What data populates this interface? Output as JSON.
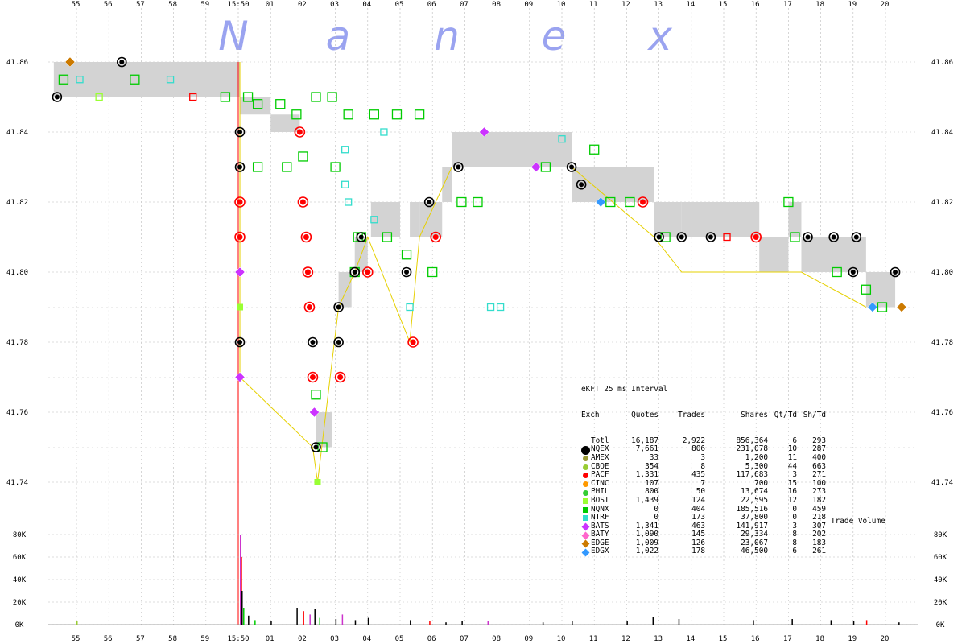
{
  "watermark": [
    "N",
    "a",
    "n",
    "e",
    "x"
  ],
  "chart_data": [
    {
      "type": "scatter",
      "title": "",
      "x_tick_labels": [
        "55",
        "56",
        "57",
        "58",
        "59",
        "15:50",
        "01",
        "02",
        "03",
        "04",
        "05",
        "06",
        "07",
        "08",
        "09",
        "10",
        "11",
        "12",
        "13",
        "14",
        "15",
        "16",
        "17",
        "18",
        "19",
        "20"
      ],
      "y_tick_labels": [
        "41.86",
        "41.84",
        "41.82",
        "41.80",
        "41.78",
        "41.76",
        "41.74"
      ],
      "y_ticks": [
        41.86,
        41.84,
        41.82,
        41.8,
        41.78,
        41.76,
        41.74
      ],
      "ylim": [
        41.735,
        41.865
      ],
      "grid": true,
      "nbbo_band": [
        {
          "t0": -5.7,
          "t1": 0.05,
          "bid": 41.85,
          "ask": 41.86
        },
        {
          "t0": 0.05,
          "t1": 1.0,
          "bid": 41.845,
          "ask": 41.85
        },
        {
          "t0": 1.0,
          "t1": 1.9,
          "bid": 41.84,
          "ask": 41.845
        },
        {
          "t0": 2.4,
          "t1": 2.9,
          "bid": 41.75,
          "ask": 41.76
        },
        {
          "t0": 3.1,
          "t1": 3.5,
          "bid": 41.79,
          "ask": 41.8
        },
        {
          "t0": 3.6,
          "t1": 4.0,
          "bid": 41.8,
          "ask": 41.81
        },
        {
          "t0": 4.1,
          "t1": 5.0,
          "bid": 41.81,
          "ask": 41.82
        },
        {
          "t0": 5.3,
          "t1": 5.6,
          "bid": 41.81,
          "ask": 41.82
        },
        {
          "t0": 5.6,
          "t1": 6.3,
          "bid": 41.81,
          "ask": 41.82
        },
        {
          "t0": 6.3,
          "t1": 6.6,
          "bid": 41.82,
          "ask": 41.83
        },
        {
          "t0": 6.6,
          "t1": 10.3,
          "bid": 41.83,
          "ask": 41.84
        },
        {
          "t0": 10.3,
          "t1": 12.85,
          "bid": 41.82,
          "ask": 41.83
        },
        {
          "t0": 12.85,
          "t1": 13.7,
          "bid": 41.81,
          "ask": 41.82
        },
        {
          "t0": 13.7,
          "t1": 16.1,
          "bid": 41.81,
          "ask": 41.82
        },
        {
          "t0": 16.1,
          "t1": 17.0,
          "bid": 41.8,
          "ask": 41.81
        },
        {
          "t0": 17.0,
          "t1": 17.4,
          "bid": 41.81,
          "ask": 41.82
        },
        {
          "t0": 17.4,
          "t1": 19.4,
          "bid": 41.8,
          "ask": 41.81
        },
        {
          "t0": 19.4,
          "t1": 20.3,
          "bid": 41.79,
          "ask": 41.8
        }
      ],
      "trades": [
        {
          "t": -5.6,
          "p": 41.85,
          "e": "NQEX"
        },
        {
          "t": -5.2,
          "p": 41.86,
          "e": "EDGE"
        },
        {
          "t": -3.6,
          "p": 41.86,
          "e": "NQEX"
        },
        {
          "t": 0.05,
          "p": 41.84,
          "e": "NQEX"
        },
        {
          "t": 0.05,
          "p": 41.83,
          "e": "NQEX"
        },
        {
          "t": 0.05,
          "p": 41.82,
          "e": "PACF"
        },
        {
          "t": 0.05,
          "p": 41.81,
          "e": "PACF"
        },
        {
          "t": 0.05,
          "p": 41.8,
          "e": "BATS"
        },
        {
          "t": 0.05,
          "p": 41.79,
          "e": "BOST"
        },
        {
          "t": 0.05,
          "p": 41.78,
          "e": "NQEX"
        },
        {
          "t": 0.05,
          "p": 41.77,
          "e": "BATS"
        },
        {
          "t": 1.9,
          "p": 41.84,
          "e": "PACF"
        },
        {
          "t": 2.0,
          "p": 41.82,
          "e": "PACF"
        },
        {
          "t": 2.1,
          "p": 41.81,
          "e": "PACF"
        },
        {
          "t": 2.15,
          "p": 41.8,
          "e": "PACF"
        },
        {
          "t": 2.2,
          "p": 41.79,
          "e": "PACF"
        },
        {
          "t": 2.3,
          "p": 41.78,
          "e": "NQEX"
        },
        {
          "t": 2.3,
          "p": 41.77,
          "e": "PACF"
        },
        {
          "t": 2.35,
          "p": 41.76,
          "e": "BATS"
        },
        {
          "t": 2.4,
          "p": 41.75,
          "e": "NQEX"
        },
        {
          "t": 2.45,
          "p": 41.74,
          "e": "BOST"
        },
        {
          "t": 3.1,
          "p": 41.79,
          "e": "NQEX"
        },
        {
          "t": 3.1,
          "p": 41.78,
          "e": "NQEX"
        },
        {
          "t": 3.15,
          "p": 41.77,
          "e": "PACF"
        },
        {
          "t": 3.6,
          "p": 41.8,
          "e": "NQEX"
        },
        {
          "t": 3.8,
          "p": 41.81,
          "e": "NQEX"
        },
        {
          "t": 4.0,
          "p": 41.8,
          "e": "PACF"
        },
        {
          "t": 5.2,
          "p": 41.8,
          "e": "NQEX"
        },
        {
          "t": 5.4,
          "p": 41.78,
          "e": "PACF"
        },
        {
          "t": 5.9,
          "p": 41.82,
          "e": "NQEX"
        },
        {
          "t": 6.1,
          "p": 41.81,
          "e": "PACF"
        },
        {
          "t": 6.8,
          "p": 41.83,
          "e": "NQEX"
        },
        {
          "t": 7.6,
          "p": 41.84,
          "e": "BATS"
        },
        {
          "t": 9.2,
          "p": 41.83,
          "e": "BATS"
        },
        {
          "t": 10.3,
          "p": 41.83,
          "e": "NQEX"
        },
        {
          "t": 10.6,
          "p": 41.825,
          "e": "NQEX"
        },
        {
          "t": 11.2,
          "p": 41.82,
          "e": "EDGX"
        },
        {
          "t": 12.5,
          "p": 41.82,
          "e": "PACF"
        },
        {
          "t": 13.0,
          "p": 41.81,
          "e": "NQEX"
        },
        {
          "t": 13.7,
          "p": 41.81,
          "e": "NQEX"
        },
        {
          "t": 14.6,
          "p": 41.81,
          "e": "NQEX"
        },
        {
          "t": 16.0,
          "p": 41.81,
          "e": "PACF"
        },
        {
          "t": 17.6,
          "p": 41.81,
          "e": "NQEX"
        },
        {
          "t": 18.4,
          "p": 41.81,
          "e": "NQEX"
        },
        {
          "t": 19.1,
          "p": 41.81,
          "e": "NQEX"
        },
        {
          "t": 19.0,
          "p": 41.8,
          "e": "NQEX"
        },
        {
          "t": 19.6,
          "p": 41.79,
          "e": "EDGX"
        },
        {
          "t": 20.3,
          "p": 41.8,
          "e": "NQEX"
        },
        {
          "t": 20.5,
          "p": 41.79,
          "e": "EDGE"
        }
      ],
      "quotes": [
        {
          "t": -5.4,
          "p": 41.855,
          "e": "NQNX"
        },
        {
          "t": -4.9,
          "p": 41.855,
          "e": "NTRF"
        },
        {
          "t": -4.3,
          "p": 41.85,
          "e": "BOST"
        },
        {
          "t": -3.2,
          "p": 41.855,
          "e": "NQNX"
        },
        {
          "t": -2.1,
          "p": 41.855,
          "e": "NTRF"
        },
        {
          "t": -1.4,
          "p": 41.85,
          "e": "PACF"
        },
        {
          "t": -0.4,
          "p": 41.85,
          "e": "NQNX"
        },
        {
          "t": 0.3,
          "p": 41.85,
          "e": "NQNX"
        },
        {
          "t": 0.6,
          "p": 41.848,
          "e": "NQNX"
        },
        {
          "t": 1.3,
          "p": 41.848,
          "e": "NQNX"
        },
        {
          "t": 1.8,
          "p": 41.845,
          "e": "NQNX"
        },
        {
          "t": 2.4,
          "p": 41.85,
          "e": "NQNX"
        },
        {
          "t": 2.9,
          "p": 41.85,
          "e": "NQNX"
        },
        {
          "t": 3.4,
          "p": 41.845,
          "e": "NQNX"
        },
        {
          "t": 4.2,
          "p": 41.845,
          "e": "NQNX"
        },
        {
          "t": 4.9,
          "p": 41.845,
          "e": "NQNX"
        },
        {
          "t": 5.6,
          "p": 41.845,
          "e": "NQNX"
        },
        {
          "t": 2.0,
          "p": 41.833,
          "e": "NQNX"
        },
        {
          "t": 1.5,
          "p": 41.83,
          "e": "NQNX"
        },
        {
          "t": 0.6,
          "p": 41.83,
          "e": "NQNX"
        },
        {
          "t": 3.0,
          "p": 41.83,
          "e": "NQNX"
        },
        {
          "t": 3.3,
          "p": 41.835,
          "e": "NTRF"
        },
        {
          "t": 3.3,
          "p": 41.825,
          "e": "NTRF"
        },
        {
          "t": 3.4,
          "p": 41.82,
          "e": "NTRF"
        },
        {
          "t": 3.6,
          "p": 41.8,
          "e": "NQNX"
        },
        {
          "t": 3.8,
          "p": 41.81,
          "e": "NQNX"
        },
        {
          "t": 4.2,
          "p": 41.815,
          "e": "NTRF"
        },
        {
          "t": 4.5,
          "p": 41.84,
          "e": "NTRF"
        },
        {
          "t": 5.2,
          "p": 41.805,
          "e": "NQNX"
        },
        {
          "t": 5.3,
          "p": 41.79,
          "e": "NTRF"
        },
        {
          "t": 6.0,
          "p": 41.8,
          "e": "NQNX"
        },
        {
          "t": 6.9,
          "p": 41.82,
          "e": "NQNX"
        },
        {
          "t": 7.4,
          "p": 41.82,
          "e": "NQNX"
        },
        {
          "t": 7.8,
          "p": 41.79,
          "e": "NTRF"
        },
        {
          "t": 8.1,
          "p": 41.79,
          "e": "NTRF"
        },
        {
          "t": 9.5,
          "p": 41.83,
          "e": "NQNX"
        },
        {
          "t": 10.0,
          "p": 41.838,
          "e": "NTRF"
        },
        {
          "t": 11.5,
          "p": 41.82,
          "e": "NQNX"
        },
        {
          "t": 12.1,
          "p": 41.82,
          "e": "NQNX"
        },
        {
          "t": 17.0,
          "p": 41.82,
          "e": "NQNX"
        },
        {
          "t": 17.2,
          "p": 41.81,
          "e": "NQNX"
        },
        {
          "t": 18.5,
          "p": 41.8,
          "e": "NQNX"
        },
        {
          "t": 19.4,
          "p": 41.795,
          "e": "NQNX"
        },
        {
          "t": 19.9,
          "p": 41.79,
          "e": "NQNX"
        },
        {
          "t": 2.4,
          "p": 41.765,
          "e": "NQNX"
        },
        {
          "t": 2.6,
          "p": 41.75,
          "e": "NQNX"
        },
        {
          "t": 3.7,
          "p": 41.81,
          "e": "NQNX"
        },
        {
          "t": 4.6,
          "p": 41.81,
          "e": "NQNX"
        },
        {
          "t": 11.0,
          "p": 41.835,
          "e": "NQNX"
        },
        {
          "t": 13.2,
          "p": 41.81,
          "e": "NQNX"
        },
        {
          "t": 15.1,
          "p": 41.81,
          "e": "PACF"
        }
      ],
      "price_path": [
        [
          0.05,
          41.86
        ],
        [
          0.05,
          41.77
        ],
        [
          2.3,
          41.75
        ],
        [
          2.45,
          41.74
        ],
        [
          3.1,
          41.79
        ],
        [
          3.6,
          41.8
        ],
        [
          4.0,
          41.81
        ],
        [
          5.3,
          41.78
        ],
        [
          5.6,
          41.81
        ],
        [
          6.6,
          41.83
        ],
        [
          10.3,
          41.83
        ],
        [
          12.85,
          41.81
        ],
        [
          13.7,
          41.8
        ],
        [
          16.1,
          41.8
        ],
        [
          17.4,
          41.8
        ],
        [
          19.4,
          41.79
        ]
      ]
    },
    {
      "type": "bar",
      "title": "Trade Volume",
      "y_tick_labels": [
        "80K",
        "60K",
        "40K",
        "20K",
        "0K"
      ],
      "ylim": [
        0,
        80000
      ],
      "bars": [
        {
          "t": -5.0,
          "v": 3000,
          "c": "#99cc33"
        },
        {
          "t": 0.05,
          "v": 85000,
          "c": "#cc33cc"
        },
        {
          "t": 0.08,
          "v": 60000,
          "c": "#ff0000"
        },
        {
          "t": 0.1,
          "v": 30000,
          "c": "#000000"
        },
        {
          "t": 0.15,
          "v": 15000,
          "c": "#00cc00"
        },
        {
          "t": 0.3,
          "v": 8000,
          "c": "#000000"
        },
        {
          "t": 0.5,
          "v": 4000,
          "c": "#00cc00"
        },
        {
          "t": 1.0,
          "v": 3000,
          "c": "#000000"
        },
        {
          "t": 1.8,
          "v": 15000,
          "c": "#000000"
        },
        {
          "t": 2.0,
          "v": 12000,
          "c": "#ff0000"
        },
        {
          "t": 2.2,
          "v": 9000,
          "c": "#cc33cc"
        },
        {
          "t": 2.35,
          "v": 14000,
          "c": "#000000"
        },
        {
          "t": 2.5,
          "v": 6000,
          "c": "#00cc00"
        },
        {
          "t": 3.0,
          "v": 5000,
          "c": "#000000"
        },
        {
          "t": 3.2,
          "v": 9000,
          "c": "#cc33cc"
        },
        {
          "t": 3.6,
          "v": 4000,
          "c": "#000000"
        },
        {
          "t": 4.0,
          "v": 6000,
          "c": "#000000"
        },
        {
          "t": 5.3,
          "v": 4000,
          "c": "#000000"
        },
        {
          "t": 5.9,
          "v": 3000,
          "c": "#ff0000"
        },
        {
          "t": 6.4,
          "v": 2000,
          "c": "#000000"
        },
        {
          "t": 6.9,
          "v": 3000,
          "c": "#000000"
        },
        {
          "t": 7.7,
          "v": 3000,
          "c": "#cc33cc"
        },
        {
          "t": 9.4,
          "v": 2000,
          "c": "#000000"
        },
        {
          "t": 10.3,
          "v": 3000,
          "c": "#000000"
        },
        {
          "t": 12.0,
          "v": 3000,
          "c": "#000000"
        },
        {
          "t": 12.8,
          "v": 7000,
          "c": "#000000"
        },
        {
          "t": 13.6,
          "v": 5000,
          "c": "#000000"
        },
        {
          "t": 15.9,
          "v": 4000,
          "c": "#000000"
        },
        {
          "t": 17.1,
          "v": 5000,
          "c": "#000000"
        },
        {
          "t": 18.3,
          "v": 4000,
          "c": "#000000"
        },
        {
          "t": 19.0,
          "v": 3000,
          "c": "#000000"
        },
        {
          "t": 19.4,
          "v": 4000,
          "c": "#ff0000"
        },
        {
          "t": 20.4,
          "v": 2000,
          "c": "#000000"
        }
      ]
    }
  ],
  "legend": {
    "header1": "eKFT 25 ms Interval",
    "columns": [
      "Exch",
      "Quotes",
      "Trades",
      "Shares",
      "Qt/Td",
      "Sh/Td"
    ],
    "rows": [
      {
        "exch": "Totl",
        "quotes": "16,187",
        "trades": "2,922",
        "shares": "856,364",
        "qt_td": "6",
        "sh_td": "293",
        "color": "",
        "shape": "none"
      },
      {
        "exch": "NQEX",
        "quotes": "7,661",
        "trades": "806",
        "shares": "231,078",
        "qt_td": "10",
        "sh_td": "287",
        "color": "#000000",
        "shape": "circle-big"
      },
      {
        "exch": "AMEX",
        "quotes": "33",
        "trades": "3",
        "shares": "1,200",
        "qt_td": "11",
        "sh_td": "400",
        "color": "#999933",
        "shape": "circle"
      },
      {
        "exch": "CBOE",
        "quotes": "354",
        "trades": "8",
        "shares": "5,300",
        "qt_td": "44",
        "sh_td": "663",
        "color": "#99cc33",
        "shape": "circle"
      },
      {
        "exch": "PACF",
        "quotes": "1,331",
        "trades": "435",
        "shares": "117,683",
        "qt_td": "3",
        "sh_td": "271",
        "color": "#ff0000",
        "shape": "circle"
      },
      {
        "exch": "CINC",
        "quotes": "107",
        "trades": "7",
        "shares": "700",
        "qt_td": "15",
        "sh_td": "100",
        "color": "#ff9900",
        "shape": "circle"
      },
      {
        "exch": "PHIL",
        "quotes": "800",
        "trades": "50",
        "shares": "13,674",
        "qt_td": "16",
        "sh_td": "273",
        "color": "#33cc33",
        "shape": "circle"
      },
      {
        "exch": "BOST",
        "quotes": "1,439",
        "trades": "124",
        "shares": "22,595",
        "qt_td": "12",
        "sh_td": "182",
        "color": "#99ff33",
        "shape": "square"
      },
      {
        "exch": "NQNX",
        "quotes": "0",
        "trades": "404",
        "shares": "185,516",
        "qt_td": "0",
        "sh_td": "459",
        "color": "#00cc00",
        "shape": "square"
      },
      {
        "exch": "NTRF",
        "quotes": "0",
        "trades": "173",
        "shares": "37,800",
        "qt_td": "0",
        "sh_td": "218",
        "color": "#33ddcc",
        "shape": "square"
      },
      {
        "exch": "BATS",
        "quotes": "1,341",
        "trades": "463",
        "shares": "141,917",
        "qt_td": "3",
        "sh_td": "307",
        "color": "#cc33ff",
        "shape": "diamond"
      },
      {
        "exch": "BATY",
        "quotes": "1,090",
        "trades": "145",
        "shares": "29,334",
        "qt_td": "8",
        "sh_td": "202",
        "color": "#ff66cc",
        "shape": "diamond"
      },
      {
        "exch": "EDGE",
        "quotes": "1,009",
        "trades": "126",
        "shares": "23,067",
        "qt_td": "8",
        "sh_td": "183",
        "color": "#cc7a00",
        "shape": "diamond"
      },
      {
        "exch": "EDGX",
        "quotes": "1,022",
        "trades": "178",
        "shares": "46,500",
        "qt_td": "6",
        "sh_td": "261",
        "color": "#3399ff",
        "shape": "diamond"
      }
    ]
  },
  "exchange_colors": {
    "NQEX": "#000000",
    "AMEX": "#999933",
    "CBOE": "#99cc33",
    "PACF": "#ff0000",
    "CINC": "#ff9900",
    "PHIL": "#33cc33",
    "BOST": "#99ff33",
    "NQNX": "#00cc00",
    "NTRF": "#33ddcc",
    "BATS": "#cc33ff",
    "BATY": "#ff66cc",
    "EDGE": "#cc7a00",
    "EDGX": "#3399ff"
  },
  "volume_label": "Trade Volume"
}
